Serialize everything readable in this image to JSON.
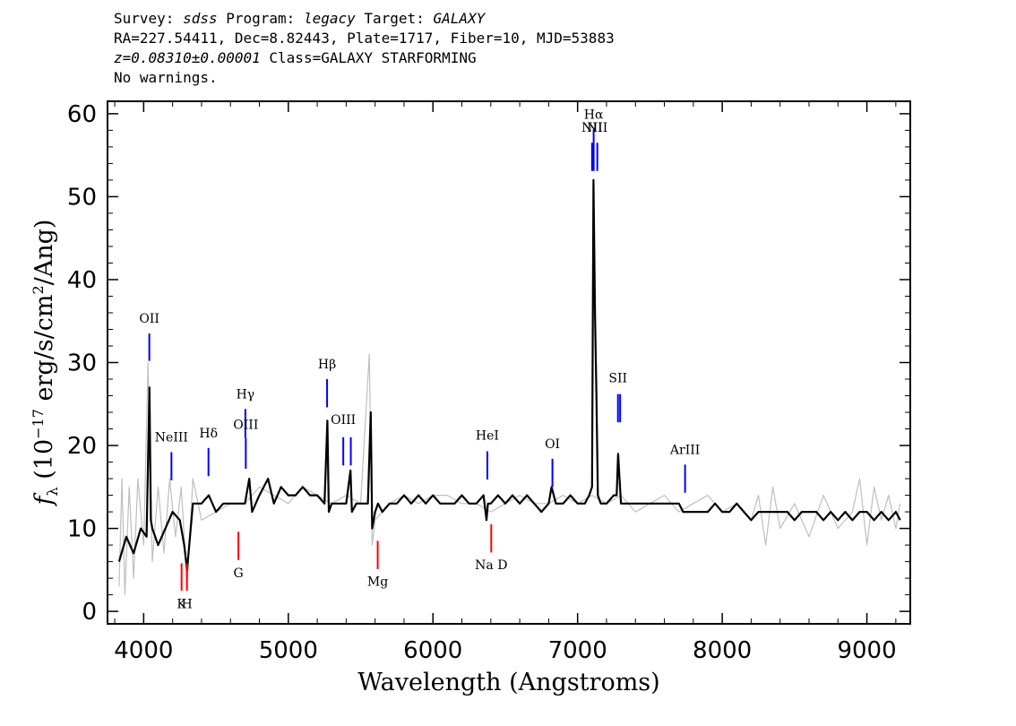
{
  "header": {
    "survey_label": "Survey:",
    "survey_value": "sdss",
    "program_label": "Program:",
    "program_value": "legacy",
    "target_label": "Target:",
    "target_value": "GALAXY",
    "coords": "RA=227.54411, Dec=8.82443, Plate=1717, Fiber=10, MJD=53883",
    "redshift": "z=0.08310±0.00001",
    "class_text": "Class=GALAXY STARFORMING",
    "warnings": "No warnings."
  },
  "chart_data": {
    "type": "line",
    "xlabel": "Wavelength (Angstroms)",
    "ylabel": "f_λ (10^-17 erg/s/cm^2/Ang)",
    "xlim": [
      3750,
      9300
    ],
    "ylim": [
      -1.5,
      61.5
    ],
    "xticks": [
      4000,
      5000,
      6000,
      7000,
      8000,
      9000
    ],
    "yticks": [
      0,
      10,
      20,
      30,
      40,
      50,
      60
    ],
    "colors": {
      "flux": "#000000",
      "error": "#bfbfbf",
      "emission": "#0000ff",
      "absorption": "#ff0000"
    },
    "series": [
      {
        "role": "flux",
        "x": [
          3830,
          3880,
          3930,
          3980,
          4020,
          4040,
          4050,
          4060,
          4100,
          4150,
          4200,
          4250,
          4280,
          4300,
          4340,
          4400,
          4450,
          4500,
          4550,
          4600,
          4650,
          4700,
          4730,
          4750,
          4800,
          4860,
          4900,
          4950,
          5000,
          5050,
          5100,
          5150,
          5200,
          5250,
          5270,
          5280,
          5300,
          5350,
          5400,
          5430,
          5440,
          5470,
          5500,
          5550,
          5570,
          5580,
          5600,
          5620,
          5650,
          5700,
          5750,
          5800,
          5850,
          5900,
          5950,
          6000,
          6050,
          6100,
          6150,
          6200,
          6250,
          6300,
          6350,
          6370,
          6380,
          6400,
          6450,
          6500,
          6550,
          6600,
          6650,
          6700,
          6750,
          6800,
          6820,
          6850,
          6900,
          6950,
          7000,
          7050,
          7080,
          7100,
          7110,
          7120,
          7130,
          7140,
          7160,
          7200,
          7250,
          7270,
          7280,
          7290,
          7300,
          7320,
          7350,
          7400,
          7450,
          7500,
          7550,
          7600,
          7650,
          7700,
          7730,
          7750,
          7800,
          7850,
          7900,
          7950,
          8000,
          8050,
          8100,
          8150,
          8200,
          8250,
          8300,
          8350,
          8400,
          8450,
          8500,
          8550,
          8600,
          8650,
          8700,
          8750,
          8800,
          8850,
          8900,
          8950,
          9000,
          9050,
          9100,
          9150,
          9200,
          9230
        ],
        "y": [
          6,
          9,
          7,
          10,
          9,
          27,
          11,
          10,
          8,
          10,
          12,
          11,
          8,
          5,
          13,
          13,
          14,
          12,
          13,
          13,
          13,
          13,
          16,
          12,
          14,
          16,
          13,
          15,
          14,
          14,
          15,
          14,
          14,
          13,
          23,
          12,
          13,
          13,
          13,
          17,
          12,
          13,
          13,
          13,
          24,
          10,
          12,
          13,
          12,
          13,
          13,
          14,
          13,
          14,
          13,
          14,
          13,
          13,
          13,
          14,
          13,
          13,
          14,
          11,
          13,
          13,
          14,
          13,
          14,
          13,
          14,
          13,
          12,
          13,
          15,
          13,
          13,
          14,
          13,
          13,
          14,
          15,
          52,
          36,
          26,
          14,
          13,
          13,
          14,
          14,
          19,
          16,
          13,
          13,
          13,
          13,
          13,
          13,
          13,
          13,
          13,
          13,
          12,
          12,
          12,
          12,
          12,
          13,
          12,
          12,
          13,
          12,
          11,
          12,
          12,
          12,
          12,
          12,
          11,
          12,
          12,
          12,
          11,
          12,
          11,
          12,
          11,
          12,
          12,
          11,
          12,
          11,
          12,
          11
        ]
      },
      {
        "role": "error",
        "x": [
          3830,
          3850,
          3870,
          3900,
          3930,
          3960,
          4000,
          4030,
          4060,
          4100,
          4140,
          4180,
          4220,
          4260,
          4300,
          4340,
          4400,
          4500,
          4600,
          4700,
          4800,
          4900,
          5000,
          5100,
          5200,
          5300,
          5400,
          5500,
          5560,
          5580,
          5600,
          5700,
          5800,
          5900,
          6000,
          6100,
          6200,
          6300,
          6400,
          6500,
          6600,
          6700,
          6800,
          6900,
          7000,
          7100,
          7200,
          7300,
          7400,
          7500,
          7600,
          7700,
          7800,
          7900,
          8000,
          8100,
          8200,
          8250,
          8300,
          8350,
          8400,
          8500,
          8600,
          8700,
          8800,
          8900,
          8950,
          9000,
          9050,
          9100,
          9150,
          9200,
          9230
        ],
        "y": [
          3,
          16,
          2,
          15,
          4,
          16,
          8,
          30,
          6,
          15,
          7,
          16,
          9,
          15,
          3,
          16,
          11,
          12,
          13,
          13,
          15,
          14,
          13,
          15,
          14,
          13,
          14,
          13,
          31,
          8,
          11,
          13,
          14,
          13,
          14,
          14,
          13,
          13,
          12,
          13,
          14,
          13,
          13,
          14,
          13,
          14,
          13,
          14,
          12,
          13,
          14,
          12,
          13,
          14,
          12,
          13,
          11,
          14,
          8,
          15,
          10,
          13,
          9,
          14,
          10,
          12,
          16,
          8,
          15,
          11,
          14,
          10,
          13
        ]
      }
    ],
    "emission_lines": [
      {
        "name": "OII",
        "x": 4039,
        "y0": 30.2,
        "y1": 33.5,
        "label_y": 34.8
      },
      {
        "name": "NeIII",
        "x": 4192,
        "y0": 15.8,
        "y1": 19.2,
        "label_y": 20.5
      },
      {
        "name": "Hδ",
        "x": 4448,
        "y0": 16.3,
        "y1": 19.7,
        "label_y": 21.0
      },
      {
        "name": "Hγ",
        "x": 4703,
        "y0": 20.9,
        "y1": 24.4,
        "label_y": 25.7
      },
      {
        "name": "OIII",
        "x": 4706,
        "y0": 17.2,
        "y1": 20.9,
        "label_y": 22.0
      },
      {
        "name": "Hβ",
        "x": 5268,
        "y0": 24.6,
        "y1": 28.0,
        "label_y": 29.3
      },
      {
        "name": "OIII",
        "x": 5380,
        "y0": 17.6,
        "y1": 21.0,
        "label_y": 22.6
      },
      {
        "name": "OIII",
        "x": 5432,
        "y0": 17.6,
        "y1": 21.0,
        "label_y": null
      },
      {
        "name": "HeI",
        "x": 6376,
        "y0": 15.9,
        "y1": 19.3,
        "label_y": 20.7
      },
      {
        "name": "OI",
        "x": 6826,
        "y0": 15.0,
        "y1": 18.4,
        "label_y": 19.7
      },
      {
        "name": "NII",
        "x": 7100,
        "y0": 53.1,
        "y1": 56.5,
        "label_y": 57.8
      },
      {
        "name": "Hα",
        "x": 7111,
        "y0": 53.1,
        "y1": 58.1,
        "label_y": 59.4
      },
      {
        "name": "NII",
        "x": 7136,
        "y0": 53.1,
        "y1": 56.5,
        "label_y": 57.8
      },
      {
        "name": "SII",
        "x": 7279,
        "y0": 22.8,
        "y1": 26.2,
        "label_y": 27.6
      },
      {
        "name": "SII",
        "x": 7294,
        "y0": 22.8,
        "y1": 26.2,
        "label_y": null
      },
      {
        "name": "ArIII",
        "x": 7743,
        "y0": 14.3,
        "y1": 17.7,
        "label_y": 19.0
      }
    ],
    "absorption_lines": [
      {
        "name": "K",
        "x": 4262,
        "y0": 5.8,
        "y1": 2.5,
        "label_y": 0.4
      },
      {
        "name": "H",
        "x": 4299,
        "y0": 5.8,
        "y1": 2.5,
        "label_y": 0.4
      },
      {
        "name": "G",
        "x": 4655,
        "y0": 9.6,
        "y1": 6.2,
        "label_y": 4.1
      },
      {
        "name": "Mg",
        "x": 5618,
        "y0": 8.5,
        "y1": 5.1,
        "label_y": 3.1
      },
      {
        "name": "Na D",
        "x": 6403,
        "y0": 10.5,
        "y1": 7.1,
        "label_y": 5.1
      }
    ]
  }
}
